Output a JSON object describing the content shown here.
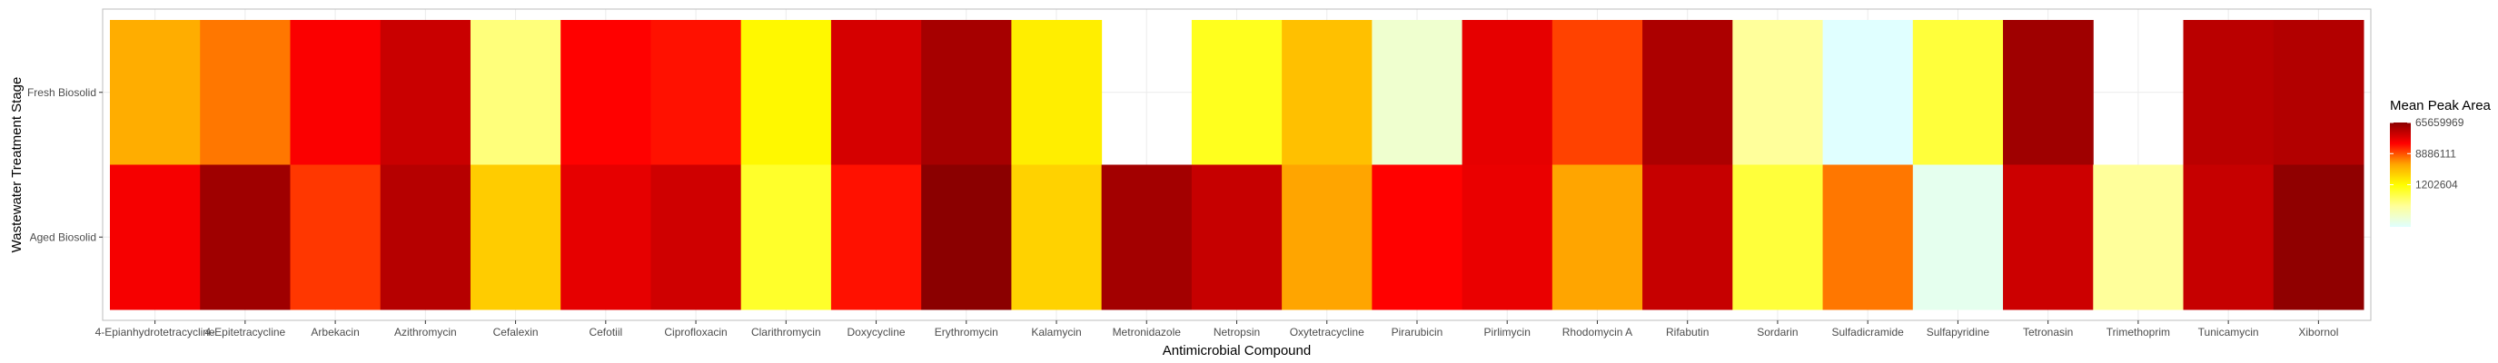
{
  "chart_data": {
    "type": "heatmap",
    "title": "",
    "xlabel": "Antimicrobial Compound",
    "ylabel": "Wastewater Treatment Stage",
    "categories": [
      "4-Epianhydrotetracycline",
      "4-Epitetracycline",
      "Arbekacin",
      "Azithromycin",
      "Cefalexin",
      "Cefotiil",
      "Ciprofloxacin",
      "Clarithromycin",
      "Doxycycline",
      "Erythromycin",
      "Kalamycin",
      "Metronidazole",
      "Netropsin",
      "Oxytetracycline",
      "Pirarubicin",
      "Pirlimycin",
      "Rhodomycin A",
      "Rifabutin",
      "Sordarin",
      "Sulfadicramide",
      "Sulfapyridine",
      "Tetronasin",
      "Trimethoprim",
      "Tunicamycin",
      "Xibornol"
    ],
    "rows": [
      "Fresh Biosolid",
      "Aged Biosolid"
    ],
    "values": [
      [
        4000000,
        6500000,
        18000000,
        32000000,
        400000,
        17000000,
        15000000,
        1300000,
        28000000,
        48000000,
        1500000,
        null,
        900000,
        3000000,
        150000,
        23000000,
        10000000,
        45000000,
        300000,
        80000,
        700000,
        52000000,
        null,
        38000000,
        42000000
      ],
      [
        19000000,
        52000000,
        11000000,
        40000000,
        2500000,
        23000000,
        30000000,
        800000,
        15000000,
        65659969,
        2300000,
        50000000,
        33000000,
        4500000,
        17000000,
        22000000,
        4500000,
        33000000,
        700000,
        6500000,
        100000,
        31000000,
        300000,
        33000000,
        62000000
      ]
    ],
    "legend": {
      "title": "Mean Peak Area",
      "ticks": [
        65659969,
        8886111,
        1202604
      ],
      "placement": "right"
    },
    "colors": {
      "low": "#e0ffff",
      "stops": [
        "#e0ffff",
        "#ffff99",
        "#ffff00",
        "#ffa500",
        "#ff0000",
        "#8b0000"
      ],
      "panel_border": "#bdbdbd",
      "grid": "#ebebeb"
    }
  }
}
